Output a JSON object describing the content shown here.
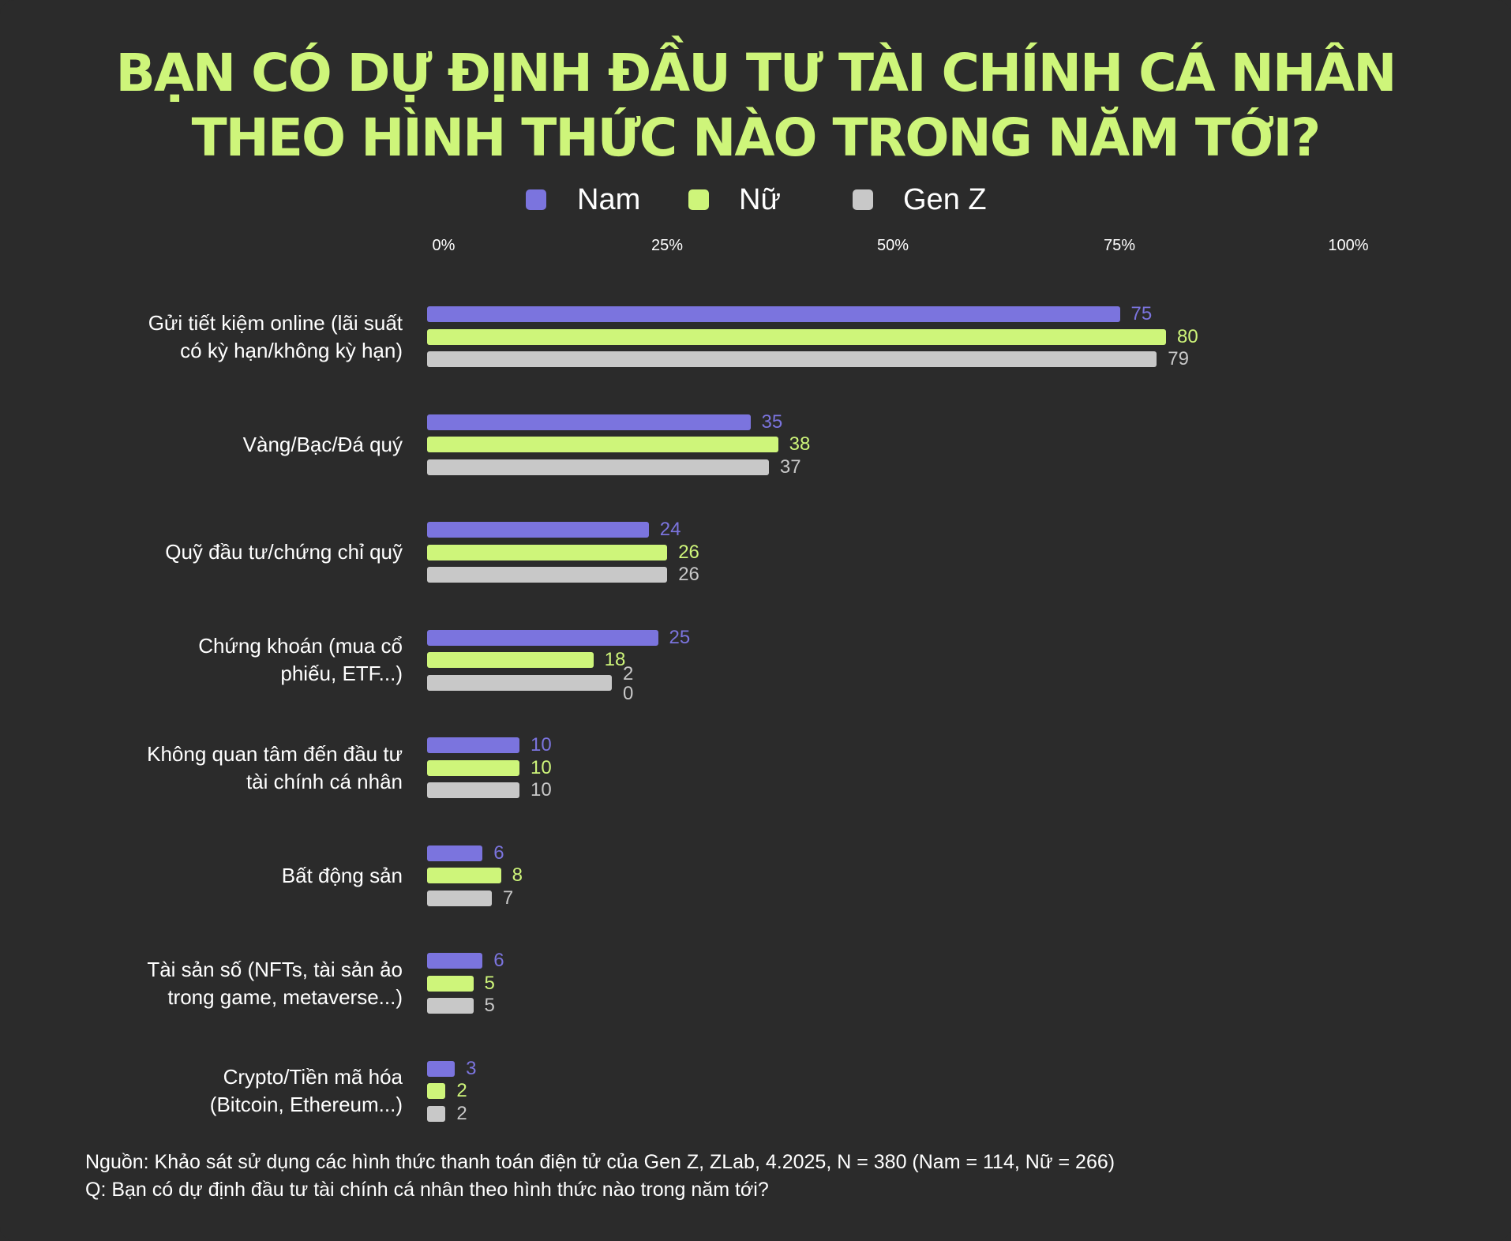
{
  "title_lines": [
    "BẠN CÓ DỰ ĐỊNH ĐẦU TƯ TÀI CHÍNH CÁ NHÂN",
    "THEO HÌNH THỨC NÀO TRONG NĂM TỚI?"
  ],
  "legend": [
    {
      "name": "Nam",
      "color": "#7b74de"
    },
    {
      "name": "Nữ",
      "color": "#cef57a"
    },
    {
      "name": "Gen Z",
      "color": "#c8c8c8"
    }
  ],
  "footer": {
    "source": "Nguồn: Khảo sát sử dụng các hình thức thanh toán điện tử của Gen Z, ZLab, 4.2025, N = 380 (Nam = 114, Nữ = 266)",
    "question": "Q: Bạn có dự định đầu tư tài chính cá nhân theo hình thức nào trong năm tới?"
  },
  "chart_data": {
    "type": "bar",
    "orientation": "horizontal",
    "title": "BẠN CÓ DỰ ĐỊNH ĐẦU TƯ TÀI CHÍNH CÁ NHÂN THEO HÌNH THỨC NÀO TRONG NĂM TỚI?",
    "x_ticks": [
      "0%",
      "25%",
      "50%",
      "75%",
      "100%"
    ],
    "xlim": [
      0,
      100
    ],
    "legend_position": "top-center",
    "grid": false,
    "categories": [
      [
        "Gửi tiết kiệm online (lãi suất",
        "có kỳ hạn/không kỳ hạn)"
      ],
      [
        "Vàng/Bạc/Đá quý"
      ],
      [
        "Quỹ đầu tư/chứng chỉ quỹ"
      ],
      [
        "Chứng khoán (mua cổ",
        "phiếu, ETF...)"
      ],
      [
        "Không quan tâm đến đầu tư",
        "tài chính cá nhân"
      ],
      [
        "Bất động sản"
      ],
      [
        "Tài sản số (NFTs, tài sản ảo",
        "trong game, metaverse...)"
      ],
      [
        "Crypto/Tiền mã hóa",
        "(Bitcoin, Ethereum...)"
      ]
    ],
    "series": [
      {
        "name": "Nam",
        "color": "#7b74de",
        "values": [
          75,
          35,
          24,
          25,
          10,
          6,
          6,
          3
        ],
        "labels": [
          "75",
          "35",
          "24",
          "25",
          "10",
          "6",
          "6",
          "3"
        ]
      },
      {
        "name": "Nữ",
        "color": "#cef57a",
        "values": [
          80,
          38,
          26,
          18,
          10,
          8,
          5,
          2
        ],
        "labels": [
          "80",
          "38",
          "26",
          "18",
          "10",
          "8",
          "5",
          "2"
        ]
      },
      {
        "name": "Gen Z",
        "color": "#c8c8c8",
        "values": [
          79,
          37,
          26,
          20,
          10,
          7,
          5,
          2
        ],
        "labels": [
          "79",
          "37",
          "26",
          "2\n0",
          "10",
          "7",
          "5",
          "2"
        ]
      }
    ]
  }
}
